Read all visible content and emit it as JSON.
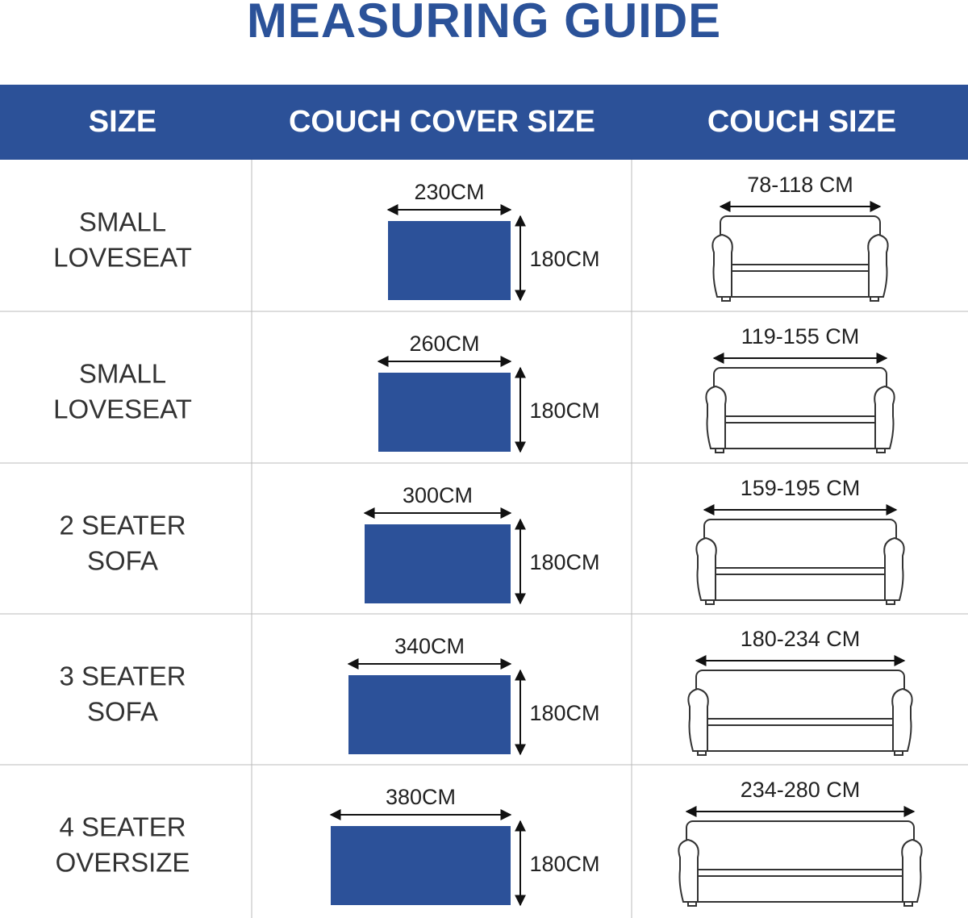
{
  "header": {
    "title": "MEASURING GUIDE",
    "columns": [
      "SIZE",
      "COUCH COVER SIZE",
      "COUCH SIZE"
    ]
  },
  "table": {
    "rows": [
      {
        "size": [
          "SMALL",
          "LOVESEAT"
        ],
        "cover_width": "230CM",
        "cover_height": "180CM",
        "couch_size": "78-118 CM"
      },
      {
        "size": [
          "SMALL",
          "LOVESEAT"
        ],
        "cover_width": "260CM",
        "cover_height": "180CM",
        "couch_size": "119-155 CM"
      },
      {
        "size": [
          "2 SEATER",
          "SOFA"
        ],
        "cover_width": "300CM",
        "cover_height": "180CM",
        "couch_size": "159-195 CM"
      },
      {
        "size": [
          "3 SEATER",
          "SOFA"
        ],
        "cover_width": "340CM",
        "cover_height": "180CM",
        "couch_size": "180-234 CM"
      },
      {
        "size": [
          "4 SEATER",
          "OVERSIZE"
        ],
        "cover_width": "380CM",
        "cover_height": "180CM",
        "couch_size": "234-280 CM"
      }
    ]
  }
}
